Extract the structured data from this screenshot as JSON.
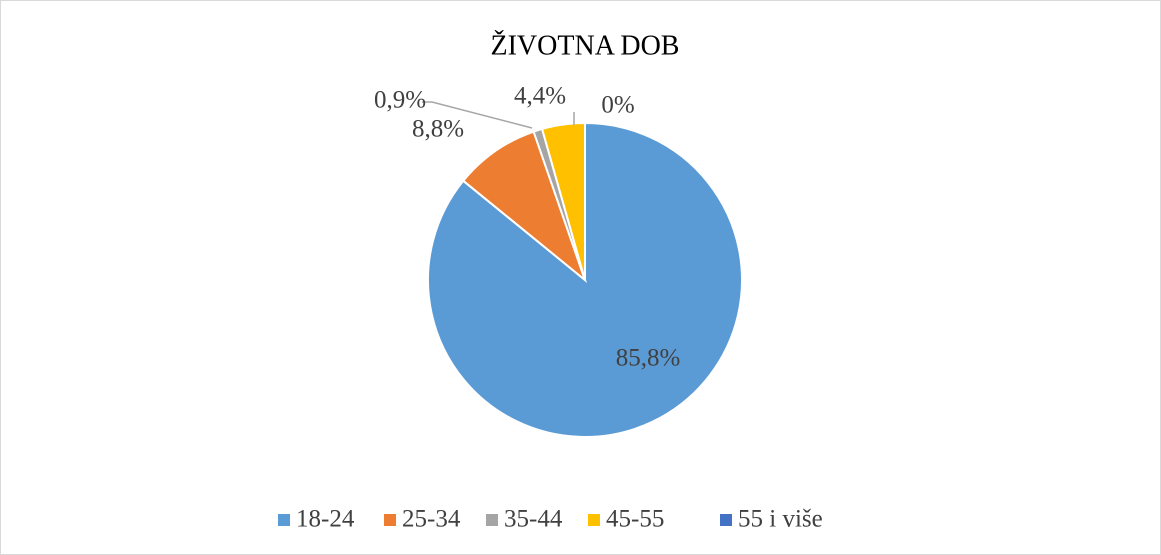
{
  "chart_data": {
    "type": "pie",
    "title": "ŽIVOTNA DOB",
    "categories": [
      "18-24",
      "25-34",
      "35-44",
      "45-55",
      "55 i više"
    ],
    "values": [
      85.8,
      8.8,
      0.9,
      4.4,
      0
    ],
    "value_labels": [
      "85,8%",
      "8,8%",
      "0,9%",
      "4,4%",
      "0%"
    ],
    "colors": [
      "#5b9bd5",
      "#ed7d31",
      "#a5a5a5",
      "#ffc000",
      "#4472c4"
    ],
    "legend": "bottom"
  }
}
